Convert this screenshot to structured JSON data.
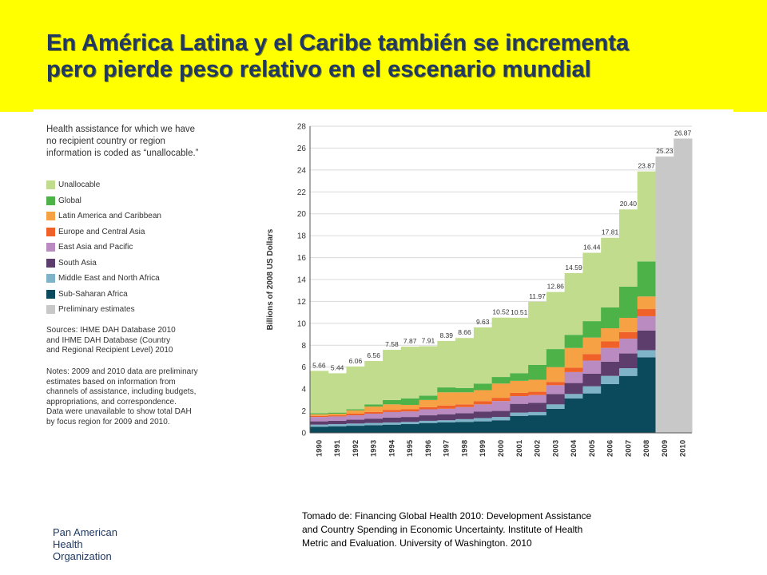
{
  "slide": {
    "title_lines": [
      "En América Latina y el Caribe también se incrementa",
      "pero pierde peso relativo en el escenario mundial"
    ],
    "caption_lines": [
      "Tomado de:  Financing Global Health 2010:  Development Assistance",
      "and Country Spending in Economic  Uncertainty.   Institute of Health",
      "Metric and Evaluation.  University of Washington.  2010"
    ],
    "org_lines": [
      "Pan American",
      "Health",
      "Organization"
    ]
  },
  "figure": {
    "heading_lines": [
      "Health assistance for which we have",
      "no recipient country or region",
      "information is coded as “unallocable.”"
    ],
    "sources_lines": [
      "Sources: IHME DAH Database 2010",
      "and IHME DAH Database (Country",
      "and Regional Recipient Level) 2010"
    ],
    "notes_lines": [
      "Notes: 2009 and 2010 data are preliminary",
      "estimates based on information from",
      "channels of assistance, including budgets,",
      "appropriations, and correspondence.",
      "Data were unavailable to show total DAH",
      "by focus region for 2009 and 2010."
    ]
  },
  "chart_data": {
    "type": "area",
    "stacked": true,
    "ylabel": "Billions of 2008 US Dollars",
    "ylim": [
      0,
      28
    ],
    "yticks": [
      0,
      2,
      4,
      6,
      8,
      10,
      12,
      14,
      16,
      18,
      20,
      22,
      24,
      26,
      28
    ],
    "x": [
      "1990",
      "1991",
      "1992",
      "1993",
      "1994",
      "1995",
      "1996",
      "1997",
      "1998",
      "1999",
      "2000",
      "2001",
      "2002",
      "2003",
      "2004",
      "2005",
      "2006",
      "2007",
      "2008"
    ],
    "series": [
      {
        "name": "Sub-Saharan Africa",
        "color": "#0a4a5c",
        "values": [
          0.55,
          0.6,
          0.65,
          0.7,
          0.75,
          0.8,
          0.9,
          0.95,
          1.0,
          1.05,
          1.15,
          1.55,
          1.6,
          2.2,
          3.15,
          3.6,
          4.45,
          5.2,
          6.9
        ]
      },
      {
        "name": "Middle East and North Africa",
        "color": "#7fb3c8",
        "values": [
          0.2,
          0.2,
          0.2,
          0.2,
          0.2,
          0.2,
          0.2,
          0.2,
          0.25,
          0.3,
          0.3,
          0.3,
          0.3,
          0.4,
          0.4,
          0.65,
          0.75,
          0.7,
          0.65
        ]
      },
      {
        "name": "South Asia",
        "color": "#5c3d6b",
        "values": [
          0.3,
          0.3,
          0.35,
          0.4,
          0.45,
          0.45,
          0.5,
          0.55,
          0.55,
          0.6,
          0.55,
          0.8,
          0.85,
          0.95,
          1.0,
          1.15,
          1.3,
          1.35,
          1.8
        ]
      },
      {
        "name": "East Asia and Pacific",
        "color": "#b98bc0",
        "values": [
          0.4,
          0.4,
          0.4,
          0.45,
          0.5,
          0.5,
          0.55,
          0.5,
          0.55,
          0.65,
          0.9,
          0.7,
          0.7,
          0.8,
          1.0,
          1.2,
          1.25,
          1.35,
          1.3
        ]
      },
      {
        "name": "Europe and Central Asia",
        "color": "#ef6128",
        "values": [
          0.1,
          0.1,
          0.15,
          0.15,
          0.2,
          0.2,
          0.2,
          0.3,
          0.25,
          0.3,
          0.3,
          0.3,
          0.3,
          0.3,
          0.4,
          0.6,
          0.6,
          0.6,
          0.65
        ]
      },
      {
        "name": "Latin America and Caribbean",
        "color": "#f6a144",
        "values": [
          0.15,
          0.15,
          0.3,
          0.5,
          0.5,
          0.4,
          0.65,
          1.2,
          1.1,
          1.0,
          1.3,
          1.1,
          1.1,
          1.35,
          1.8,
          1.5,
          1.2,
          1.3,
          1.15
        ]
      },
      {
        "name": "Global",
        "color": "#4db248",
        "values": [
          0.1,
          0.1,
          0.1,
          0.2,
          0.4,
          0.6,
          0.4,
          0.45,
          0.4,
          0.6,
          0.6,
          0.7,
          1.35,
          1.65,
          1.2,
          1.5,
          1.9,
          2.85,
          3.2
        ]
      },
      {
        "name": "Unallocable",
        "color": "#c2dc8e",
        "values": [
          3.86,
          3.59,
          3.91,
          3.96,
          4.58,
          4.72,
          4.51,
          4.24,
          4.56,
          5.13,
          5.42,
          5.06,
          5.77,
          5.21,
          5.64,
          6.24,
          6.36,
          7.05,
          8.22
        ]
      }
    ],
    "totals": [
      5.66,
      5.44,
      6.06,
      6.56,
      7.58,
      7.87,
      7.91,
      8.39,
      8.66,
      9.63,
      10.52,
      10.51,
      11.97,
      12.86,
      14.59,
      16.44,
      17.81,
      20.4,
      23.87
    ],
    "total_labels": [
      "5.66",
      "5.44",
      "6.06",
      "6.56",
      "7.58",
      "7.87",
      "7.91",
      "8.39",
      "8.66",
      "9.63",
      "10.52",
      "10.51",
      "11.97",
      "12.86",
      "14.59",
      "16.44",
      "17.81",
      "20.40",
      "23.87"
    ],
    "preliminary": {
      "name": "Preliminary estimates",
      "color": "#c8c8c8",
      "x": [
        "2009",
        "2010"
      ],
      "values": [
        25.23,
        26.87
      ],
      "labels": [
        "25.23",
        "26.87"
      ]
    },
    "legend_order": [
      "Unallocable",
      "Global",
      "Latin America and Caribbean",
      "Europe and Central Asia",
      "East Asia and Pacific",
      "South Asia",
      "Middle East and North Africa",
      "Sub-Saharan Africa",
      "Preliminary estimates"
    ],
    "legend_placement": "left",
    "grid": true
  }
}
